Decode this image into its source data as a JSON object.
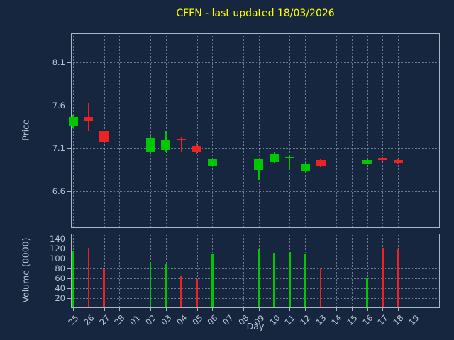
{
  "chart_data": {
    "type": "candlestick",
    "title": "CFFN - last updated 18/03/2026",
    "xlabel": "Day",
    "price_ylabel": "Price",
    "volume_ylabel": "Volume (0000)",
    "legend": "none",
    "grid": "dotted",
    "categories": [
      "25",
      "26",
      "27",
      "28",
      "01",
      "02",
      "03",
      "04",
      "05",
      "06",
      "07",
      "08",
      "09",
      "10",
      "11",
      "12",
      "13",
      "14",
      "15",
      "16",
      "17",
      "18",
      "19"
    ],
    "price_ticks": [
      6.6,
      7.1,
      7.6,
      8.1
    ],
    "volume_ticks": [
      20,
      40,
      60,
      80,
      100,
      120,
      140
    ],
    "price_ylim": [
      6.17,
      8.44
    ],
    "volume_ylim": [
      0,
      150
    ],
    "colors": {
      "up": "#00c800",
      "down": "#ee2222",
      "title": "#ffff00",
      "background": "#16263f",
      "text": "#b9c6d4"
    },
    "candles": [
      {
        "day": "25",
        "open": 7.36,
        "high": 7.49,
        "low": 7.34,
        "close": 7.47,
        "volume": 115,
        "direction": "up"
      },
      {
        "day": "26",
        "open": 7.47,
        "high": 7.62,
        "low": 7.3,
        "close": 7.42,
        "volume": 122,
        "direction": "down"
      },
      {
        "day": "27",
        "open": 7.3,
        "high": 7.33,
        "low": 7.16,
        "close": 7.18,
        "volume": 78,
        "direction": "down"
      },
      {
        "day": "02",
        "open": 7.05,
        "high": 7.24,
        "low": 7.03,
        "close": 7.22,
        "volume": 93,
        "direction": "up"
      },
      {
        "day": "03",
        "open": 7.08,
        "high": 7.3,
        "low": 7.06,
        "close": 7.19,
        "volume": 88,
        "direction": "up"
      },
      {
        "day": "04",
        "open": 7.21,
        "high": 7.23,
        "low": 7.05,
        "close": 7.19,
        "volume": 65,
        "direction": "down"
      },
      {
        "day": "05",
        "open": 7.13,
        "high": 7.16,
        "low": 7.04,
        "close": 7.06,
        "volume": 58,
        "direction": "down"
      },
      {
        "day": "06",
        "open": 6.9,
        "high": 6.98,
        "low": 6.88,
        "close": 6.97,
        "volume": 110,
        "direction": "up"
      },
      {
        "day": "09",
        "open": 6.85,
        "high": 6.98,
        "low": 6.73,
        "close": 6.97,
        "volume": 118,
        "direction": "up"
      },
      {
        "day": "10",
        "open": 6.95,
        "high": 7.05,
        "low": 6.93,
        "close": 7.03,
        "volume": 112,
        "direction": "up"
      },
      {
        "day": "11",
        "open": 6.99,
        "high": 7.02,
        "low": 6.85,
        "close": 7.0,
        "volume": 113,
        "direction": "up"
      },
      {
        "day": "12",
        "open": 6.83,
        "high": 6.93,
        "low": 6.81,
        "close": 6.92,
        "volume": 110,
        "direction": "up"
      },
      {
        "day": "13",
        "open": 6.96,
        "high": 6.98,
        "low": 6.88,
        "close": 6.9,
        "volume": 80,
        "direction": "down"
      },
      {
        "day": "16",
        "open": 6.92,
        "high": 6.97,
        "low": 6.9,
        "close": 6.96,
        "volume": 62,
        "direction": "up"
      },
      {
        "day": "17",
        "open": 6.99,
        "high": 7.0,
        "low": 6.95,
        "close": 6.96,
        "volume": 122,
        "direction": "down"
      },
      {
        "day": "18",
        "open": 6.96,
        "high": 6.98,
        "low": 6.92,
        "close": 6.93,
        "volume": 120,
        "direction": "down"
      }
    ]
  }
}
